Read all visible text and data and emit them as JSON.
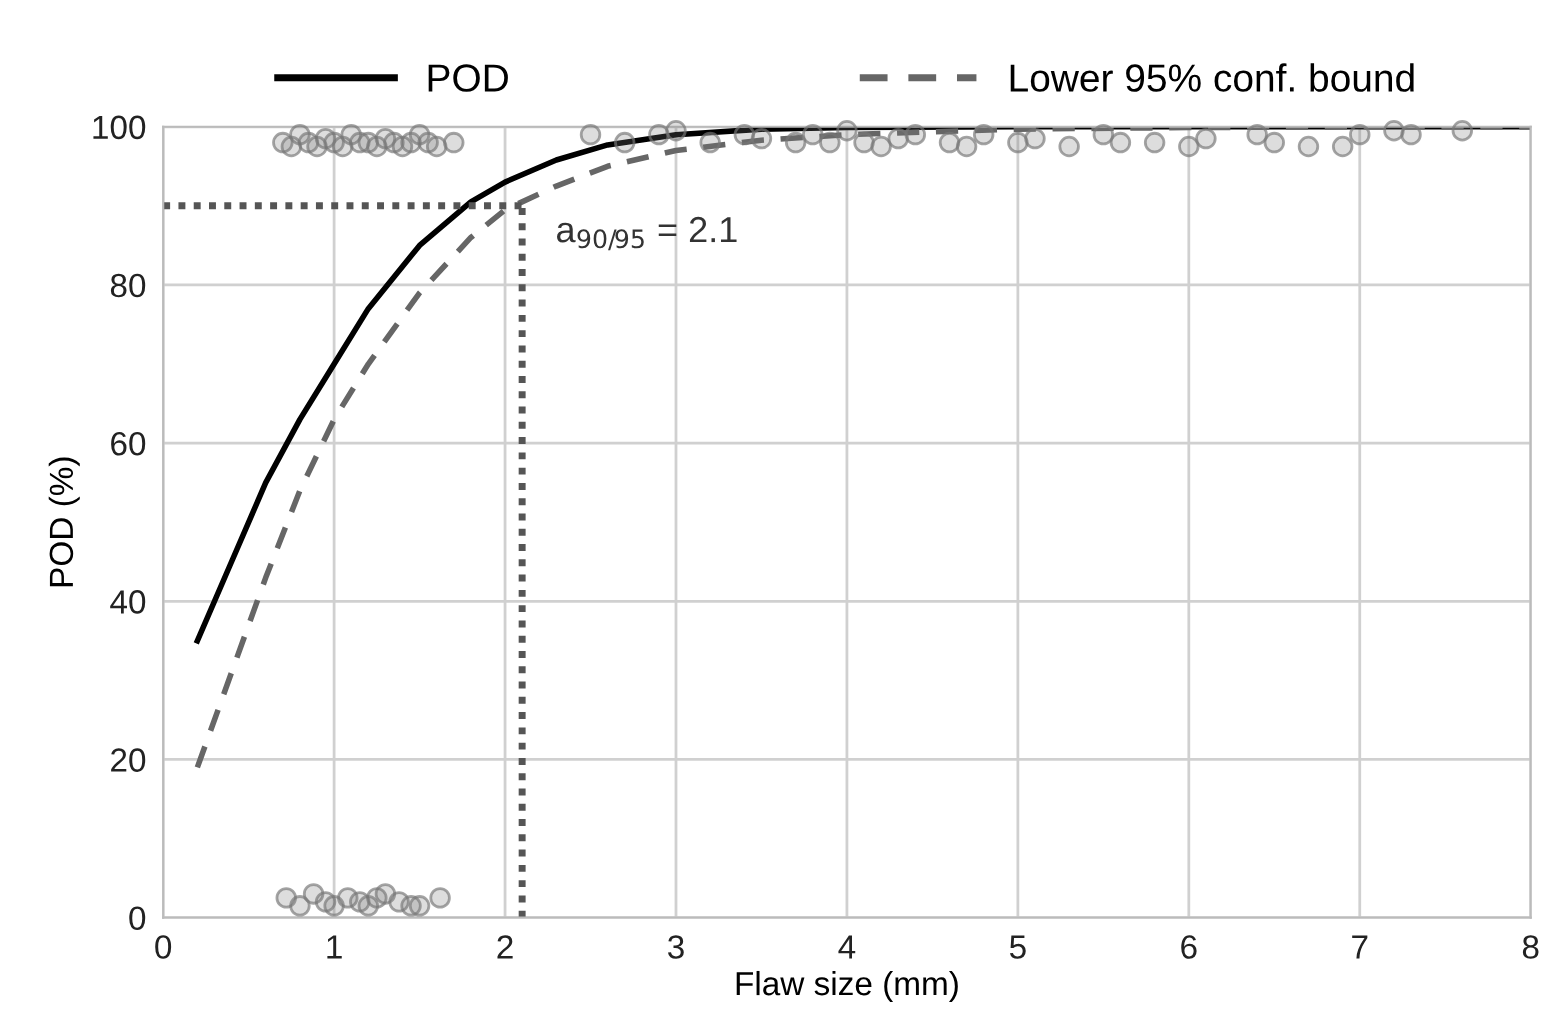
{
  "chart_data": {
    "type": "line",
    "xlabel": "Flaw size (mm)",
    "ylabel": "POD (%)",
    "xlim": [
      0,
      8
    ],
    "xticks": [
      0,
      1,
      2,
      3,
      4,
      5,
      6,
      7,
      8
    ],
    "ylim": [
      0,
      100
    ],
    "yticks": [
      0,
      20,
      40,
      60,
      80,
      100
    ],
    "grid": true,
    "legend": "top",
    "series": [
      {
        "name": "POD",
        "color": "#000000",
        "line_style": "solid",
        "x": [
          0.2,
          0.4,
          0.6,
          0.8,
          1.0,
          1.2,
          1.5,
          1.8,
          2.0,
          2.3,
          2.6,
          3.0,
          3.5,
          4.0,
          5.0,
          6.0,
          7.0,
          8.0
        ],
        "values": [
          35,
          45,
          55,
          63,
          70,
          77,
          85,
          90.5,
          93,
          95.8,
          97.7,
          99,
          99.7,
          99.9,
          100,
          100,
          100,
          100
        ]
      },
      {
        "name": "Lower 95% conf. bound",
        "color": "#666666",
        "line_style": "dashed",
        "x": [
          0.2,
          0.4,
          0.6,
          0.8,
          1.0,
          1.2,
          1.5,
          1.8,
          2.0,
          2.3,
          2.6,
          3.0,
          3.5,
          4.0,
          5.0,
          6.0,
          7.0,
          8.0
        ],
        "values": [
          19,
          31,
          43,
          54,
          63,
          70,
          79,
          86,
          89.5,
          92.5,
          95,
          97,
          98.3,
          99,
          99.7,
          99.9,
          100,
          100
        ]
      },
      {
        "type": "scatter",
        "color": "#777777",
        "marker": "circle",
        "x": [
          0.7,
          0.75,
          0.8,
          0.85,
          0.9,
          0.95,
          1.0,
          1.05,
          1.1,
          1.15,
          1.2,
          1.25,
          1.3,
          1.35,
          1.4,
          1.45,
          1.5,
          1.55,
          1.6,
          1.7,
          2.5,
          2.7,
          2.9,
          3.0,
          3.2,
          3.4,
          3.5,
          3.7,
          3.8,
          3.9,
          4.0,
          4.1,
          4.2,
          4.3,
          4.4,
          4.6,
          4.7,
          4.8,
          5.0,
          5.1,
          5.3,
          5.5,
          5.6,
          5.8,
          6.0,
          6.1,
          6.4,
          6.5,
          6.7,
          6.9,
          7.0,
          7.2,
          7.3,
          7.6,
          0.72,
          0.8,
          0.88,
          0.95,
          1.0,
          1.08,
          1.15,
          1.2,
          1.25,
          1.3,
          1.38,
          1.45,
          1.5,
          1.62
        ],
        "values": [
          98,
          97.5,
          99,
          98,
          97.5,
          98.5,
          98,
          97.5,
          99,
          98,
          98,
          97.5,
          98.5,
          98,
          97.5,
          98,
          99,
          98,
          97.5,
          98,
          99,
          98,
          99,
          99.5,
          98,
          99,
          98.5,
          98,
          99,
          98,
          99.5,
          98,
          97.5,
          98.5,
          99,
          98,
          97.5,
          99,
          98,
          98.5,
          97.5,
          99,
          98,
          98,
          97.5,
          98.5,
          99,
          98,
          97.5,
          97.5,
          99,
          99.5,
          99,
          99.5,
          2.5,
          1.5,
          3,
          2,
          1.5,
          2.5,
          2,
          1.5,
          2.5,
          3,
          2,
          1.5,
          1.5,
          2.5
        ]
      }
    ],
    "ref_lines": [
      {
        "axis": "y",
        "value": 90,
        "color": "#555555",
        "line_style": "dotted"
      },
      {
        "axis": "x",
        "value": 2.1,
        "color": "#555555",
        "line_style": "dotted"
      }
    ],
    "annotations": [
      {
        "text": "a$_{90/95}$ = 2.1",
        "x": 2.1,
        "y": 90
      }
    ]
  }
}
